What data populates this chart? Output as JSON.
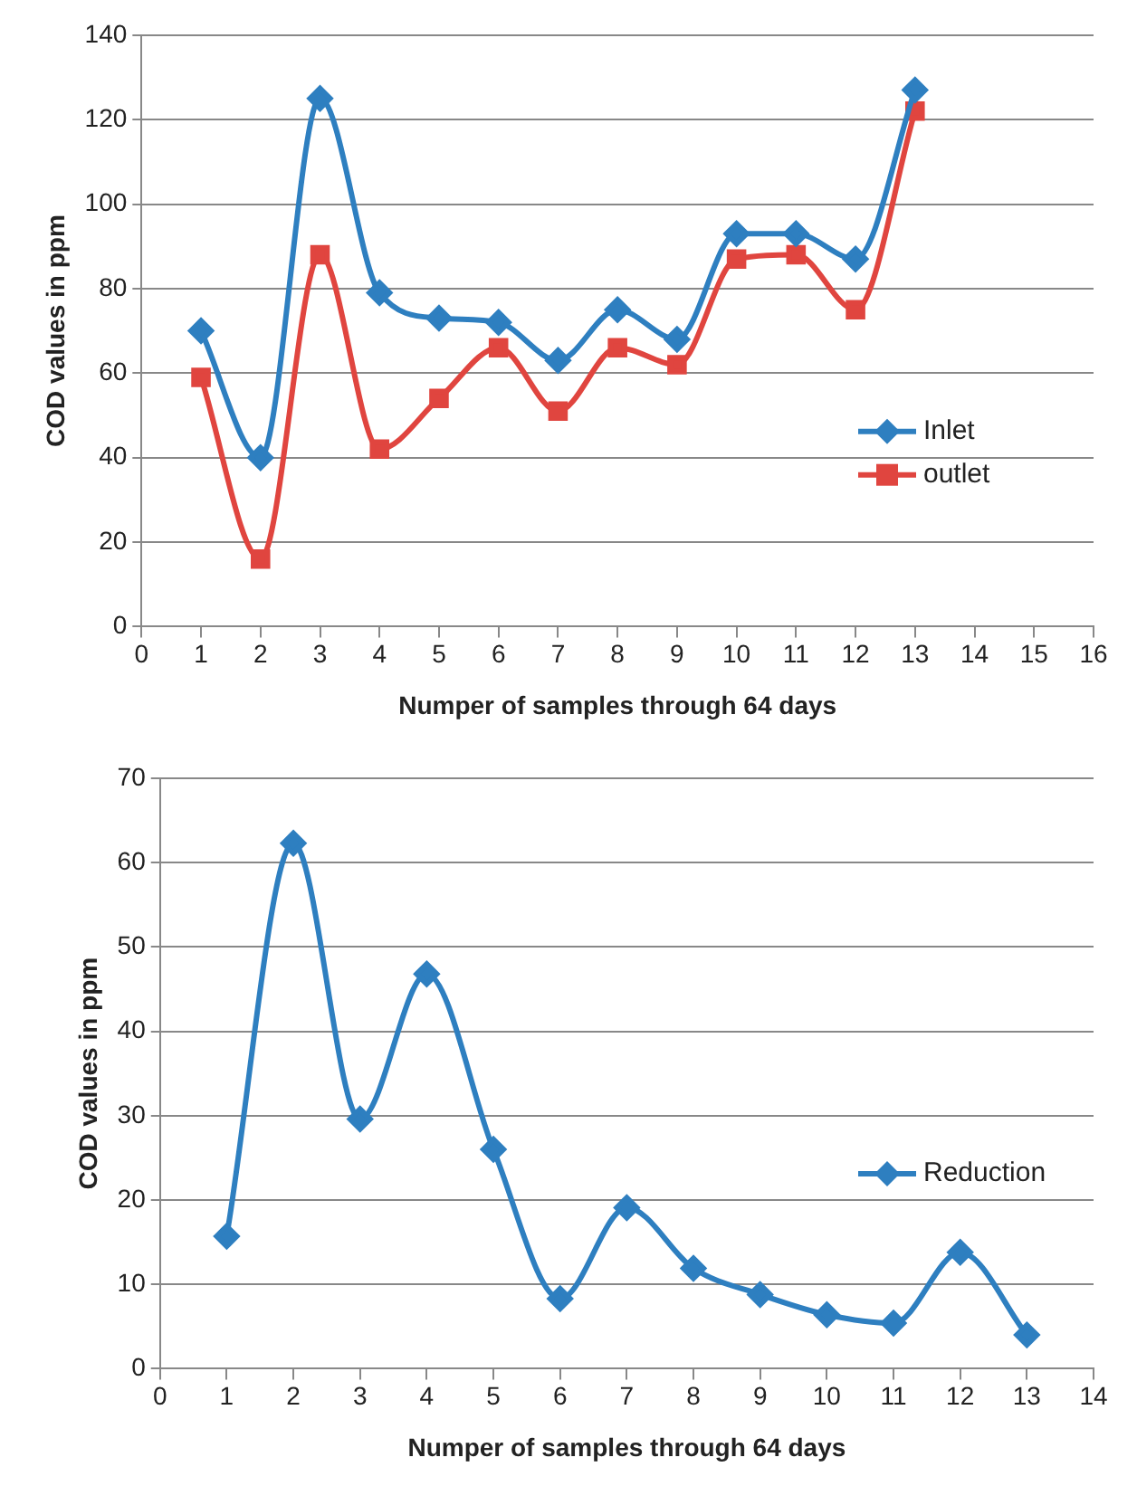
{
  "chart_data": [
    {
      "type": "line",
      "x": [
        1,
        2,
        3,
        4,
        5,
        6,
        7,
        8,
        9,
        10,
        11,
        12,
        13
      ],
      "xlabel": "Numper of samples through 64 days",
      "ylabel": "COD values in ppm",
      "xlim": [
        0,
        16
      ],
      "xticks": [
        0,
        1,
        2,
        3,
        4,
        5,
        6,
        7,
        8,
        9,
        10,
        11,
        12,
        13,
        14,
        15,
        16
      ],
      "ylim": [
        0,
        140
      ],
      "yticks": [
        0,
        20,
        40,
        60,
        80,
        100,
        120,
        140
      ],
      "grid": "y",
      "legend": "right",
      "line_style": "solid",
      "series": [
        {
          "name": "Inlet",
          "color": "#2e7fc0",
          "marker": "diamond",
          "values": [
            70,
            40,
            125,
            79,
            73,
            72,
            63,
            75,
            68,
            93,
            93,
            87,
            127
          ]
        },
        {
          "name": "outlet",
          "color": "#e0453f",
          "marker": "square",
          "values": [
            59,
            16,
            88,
            42,
            54,
            66,
            51,
            66,
            62,
            87,
            88,
            75,
            122
          ]
        }
      ]
    },
    {
      "type": "line",
      "x": [
        1,
        2,
        3,
        4,
        5,
        6,
        7,
        8,
        9,
        10,
        11,
        12,
        13
      ],
      "xlabel": "Numper of samples through 64 days",
      "ylabel": "COD values in ppm",
      "xlim": [
        0,
        14
      ],
      "xticks": [
        0,
        1,
        2,
        3,
        4,
        5,
        6,
        7,
        8,
        9,
        10,
        11,
        12,
        13,
        14
      ],
      "ylim": [
        0,
        70
      ],
      "yticks": [
        0,
        10,
        20,
        30,
        40,
        50,
        60,
        70
      ],
      "grid": "y",
      "legend": "right",
      "line_style": "solid",
      "series": [
        {
          "name": "Reduction",
          "color": "#2e7fc0",
          "marker": "diamond",
          "values": [
            15.7,
            62.3,
            29.6,
            46.8,
            26,
            8.3,
            19.1,
            11.9,
            8.8,
            6.4,
            5.4,
            13.8,
            4
          ]
        }
      ]
    }
  ]
}
